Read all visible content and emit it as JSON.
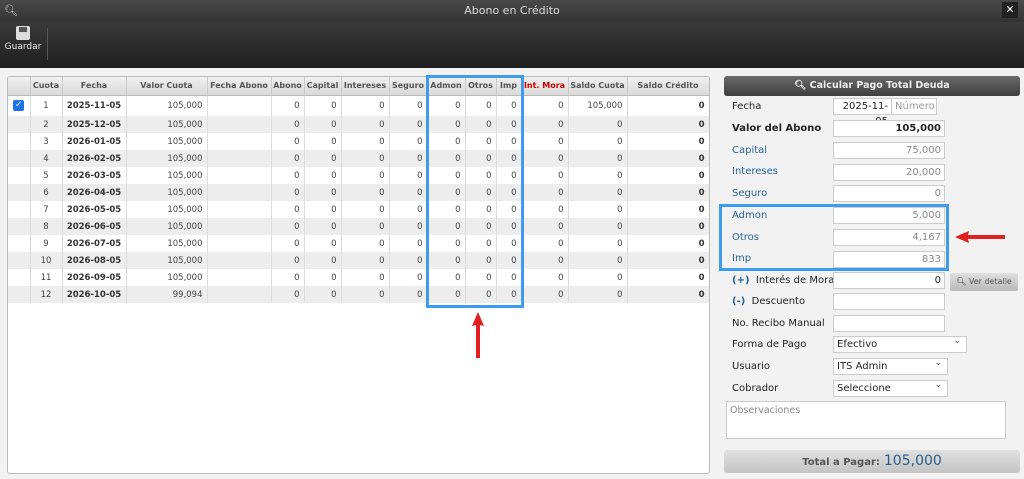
{
  "window": {
    "title": "Abono en Crédito"
  },
  "toolbar": {
    "save_label": "Guardar"
  },
  "table": {
    "columns": [
      "",
      "Cuota",
      "Fecha",
      "Valor Cuota",
      "Fecha Abono",
      "Abono",
      "Capital",
      "Intereses",
      "Seguro",
      "Admon",
      "Otros",
      "Imp",
      "Int. Mora",
      "Saldo Cuota",
      "Saldo Crédito"
    ],
    "rows": [
      {
        "checked": true,
        "cuota": "1",
        "fecha": "2025-11-05",
        "valor": "105,000",
        "fecha_abono": "",
        "abono": "0",
        "capital": "0",
        "intereses": "0",
        "seguro": "0",
        "admon": "0",
        "otros": "0",
        "imp": "0",
        "mora": "0",
        "saldo_cuota": "105,000",
        "saldo_credito": "0"
      },
      {
        "checked": false,
        "cuota": "2",
        "fecha": "2025-12-05",
        "valor": "105,000",
        "fecha_abono": "",
        "abono": "0",
        "capital": "0",
        "intereses": "0",
        "seguro": "0",
        "admon": "0",
        "otros": "0",
        "imp": "0",
        "mora": "0",
        "saldo_cuota": "0",
        "saldo_credito": "0"
      },
      {
        "checked": false,
        "cuota": "3",
        "fecha": "2026-01-05",
        "valor": "105,000",
        "fecha_abono": "",
        "abono": "0",
        "capital": "0",
        "intereses": "0",
        "seguro": "0",
        "admon": "0",
        "otros": "0",
        "imp": "0",
        "mora": "0",
        "saldo_cuota": "0",
        "saldo_credito": "0"
      },
      {
        "checked": false,
        "cuota": "4",
        "fecha": "2026-02-05",
        "valor": "105,000",
        "fecha_abono": "",
        "abono": "0",
        "capital": "0",
        "intereses": "0",
        "seguro": "0",
        "admon": "0",
        "otros": "0",
        "imp": "0",
        "mora": "0",
        "saldo_cuota": "0",
        "saldo_credito": "0"
      },
      {
        "checked": false,
        "cuota": "5",
        "fecha": "2026-03-05",
        "valor": "105,000",
        "fecha_abono": "",
        "abono": "0",
        "capital": "0",
        "intereses": "0",
        "seguro": "0",
        "admon": "0",
        "otros": "0",
        "imp": "0",
        "mora": "0",
        "saldo_cuota": "0",
        "saldo_credito": "0"
      },
      {
        "checked": false,
        "cuota": "6",
        "fecha": "2026-04-05",
        "valor": "105,000",
        "fecha_abono": "",
        "abono": "0",
        "capital": "0",
        "intereses": "0",
        "seguro": "0",
        "admon": "0",
        "otros": "0",
        "imp": "0",
        "mora": "0",
        "saldo_cuota": "0",
        "saldo_credito": "0"
      },
      {
        "checked": false,
        "cuota": "7",
        "fecha": "2026-05-05",
        "valor": "105,000",
        "fecha_abono": "",
        "abono": "0",
        "capital": "0",
        "intereses": "0",
        "seguro": "0",
        "admon": "0",
        "otros": "0",
        "imp": "0",
        "mora": "0",
        "saldo_cuota": "0",
        "saldo_credito": "0"
      },
      {
        "checked": false,
        "cuota": "8",
        "fecha": "2026-06-05",
        "valor": "105,000",
        "fecha_abono": "",
        "abono": "0",
        "capital": "0",
        "intereses": "0",
        "seguro": "0",
        "admon": "0",
        "otros": "0",
        "imp": "0",
        "mora": "0",
        "saldo_cuota": "0",
        "saldo_credito": "0"
      },
      {
        "checked": false,
        "cuota": "9",
        "fecha": "2026-07-05",
        "valor": "105,000",
        "fecha_abono": "",
        "abono": "0",
        "capital": "0",
        "intereses": "0",
        "seguro": "0",
        "admon": "0",
        "otros": "0",
        "imp": "0",
        "mora": "0",
        "saldo_cuota": "0",
        "saldo_credito": "0"
      },
      {
        "checked": false,
        "cuota": "10",
        "fecha": "2026-08-05",
        "valor": "105,000",
        "fecha_abono": "",
        "abono": "0",
        "capital": "0",
        "intereses": "0",
        "seguro": "0",
        "admon": "0",
        "otros": "0",
        "imp": "0",
        "mora": "0",
        "saldo_cuota": "0",
        "saldo_credito": "0"
      },
      {
        "checked": false,
        "cuota": "11",
        "fecha": "2026-09-05",
        "valor": "105,000",
        "fecha_abono": "",
        "abono": "0",
        "capital": "0",
        "intereses": "0",
        "seguro": "0",
        "admon": "0",
        "otros": "0",
        "imp": "0",
        "mora": "0",
        "saldo_cuota": "0",
        "saldo_credito": "0"
      },
      {
        "checked": false,
        "cuota": "12",
        "fecha": "2026-10-05",
        "valor": "99,094",
        "fecha_abono": "",
        "abono": "0",
        "capital": "0",
        "intereses": "0",
        "seguro": "0",
        "admon": "0",
        "otros": "0",
        "imp": "0",
        "mora": "0",
        "saldo_cuota": "0",
        "saldo_credito": "0"
      }
    ]
  },
  "panel": {
    "calc_button": "Calcular Pago Total Deuda",
    "fecha_label": "Fecha",
    "fecha_value": "2025-11-05",
    "numero_placeholder": "Número",
    "valor_label": "Valor del Abono",
    "valor_value": "105,000",
    "capital_label": "Capital",
    "capital_value": "75,000",
    "intereses_label": "Intereses",
    "intereses_value": "20,000",
    "seguro_label": "Seguro",
    "seguro_value": "0",
    "admon_label": "Admon",
    "admon_value": "5,000",
    "otros_label": "Otros",
    "otros_value": "4,167",
    "imp_label": "Imp",
    "imp_value": "833",
    "mora_prefix": "(+)",
    "mora_label": "Interés de Mora",
    "mora_value": "0",
    "ver_detalle": "Ver detalle",
    "descuento_prefix": "(-)",
    "descuento_label": "Descuento",
    "recibo_label": "No. Recibo Manual",
    "forma_label": "Forma de Pago",
    "forma_value": "Efectivo",
    "usuario_label": "Usuario",
    "usuario_value": "ITS Admin",
    "cobrador_label": "Cobrador",
    "cobrador_value": "Seleccione",
    "observaciones_placeholder": "Observaciones",
    "total_label": "Total a Pagar:",
    "total_value": "105,000"
  },
  "colors": {
    "highlight": "#3d9cf0",
    "arrow": "#e02020",
    "mora_header": "#cc0000",
    "accent": "#2a6496"
  }
}
